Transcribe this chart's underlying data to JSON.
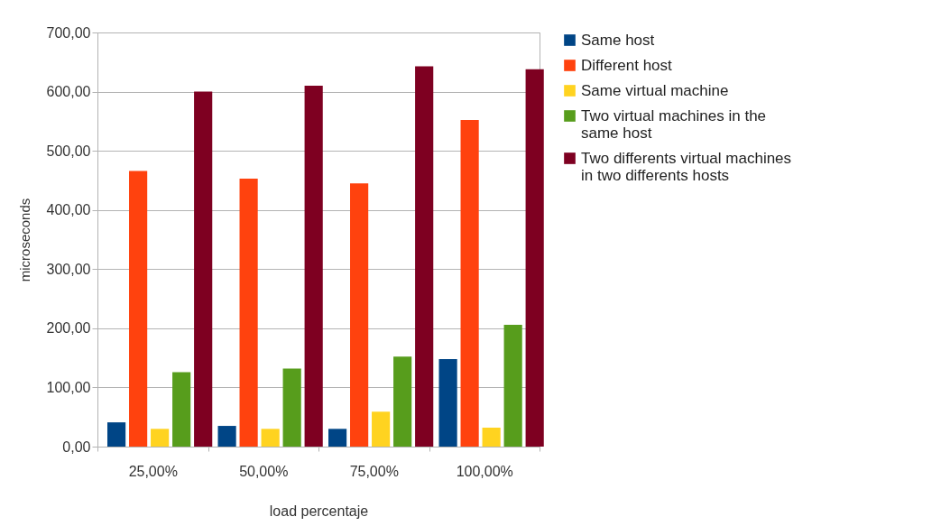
{
  "chart_data": {
    "type": "bar",
    "xlabel": "load percentaje",
    "ylabel": "microseconds",
    "categories": [
      "25,00%",
      "50,00%",
      "75,00%",
      "100,00%"
    ],
    "series": [
      {
        "name": "Same host",
        "color": "#004586",
        "values": [
          41,
          35,
          30,
          148
        ]
      },
      {
        "name": "Different host",
        "color": "#ff420e",
        "values": [
          466,
          453,
          445,
          552
        ]
      },
      {
        "name": "Same virtual machine",
        "color": "#ffd320",
        "values": [
          30,
          30,
          59,
          32
        ]
      },
      {
        "name": "Two virtual machines in the same host",
        "color": "#579d1c",
        "values": [
          126,
          132,
          152,
          206
        ]
      },
      {
        "name": "Two differents virtual machines in two differents hosts",
        "color": "#7e0021",
        "values": [
          600,
          610,
          643,
          638
        ]
      }
    ],
    "ylim": [
      0,
      700
    ],
    "yticks": [
      {
        "value": 0,
        "label": "0,00"
      },
      {
        "value": 100,
        "label": "100,00"
      },
      {
        "value": 200,
        "label": "200,00"
      },
      {
        "value": 300,
        "label": "300,00"
      },
      {
        "value": 400,
        "label": "400,00"
      },
      {
        "value": 500,
        "label": "500,00"
      },
      {
        "value": 600,
        "label": "600,00"
      },
      {
        "value": 700,
        "label": "700,00"
      }
    ],
    "grid": "y",
    "legend": "right"
  }
}
